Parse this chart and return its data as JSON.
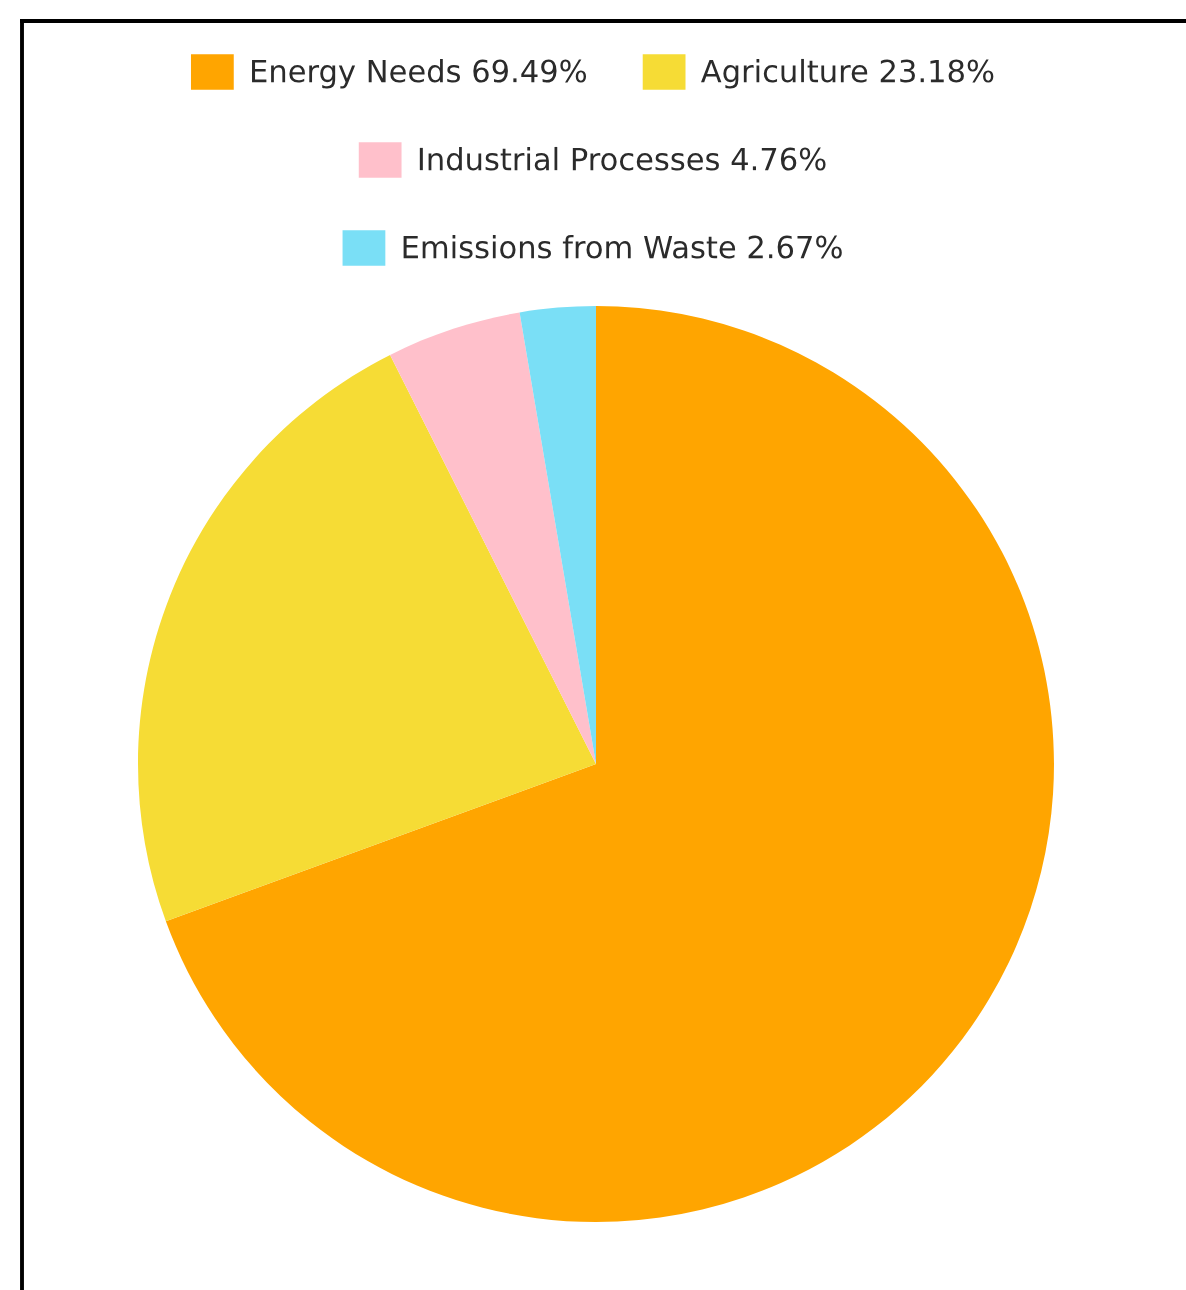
{
  "chart_data": {
    "type": "pie",
    "categories": [
      "Energy Needs 69.49%",
      "Agriculture 23.18%",
      "Industrial Processes 4.76%",
      "Emissions from Waste 2.67%"
    ],
    "values": [
      69.49,
      23.18,
      4.76,
      2.67
    ],
    "colors": [
      "#ffa500",
      "#f6dc35",
      "#ffc0cb",
      "#7adff6"
    ],
    "legend": "top"
  }
}
